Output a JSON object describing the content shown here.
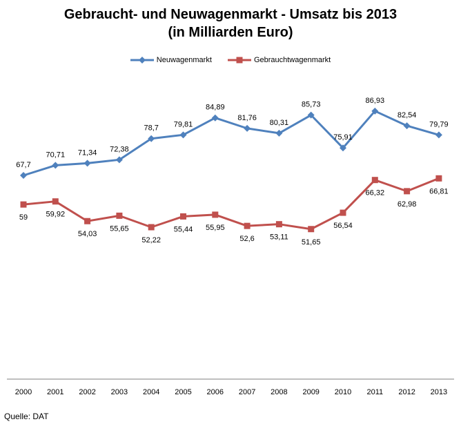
{
  "header": {
    "title_line1": "Gebraucht- und Neuwagenmarkt - Umsatz bis 2013",
    "title_line2": "(in Milliarden Euro)"
  },
  "footer": {
    "source": "Quelle: DAT"
  },
  "chart_data": {
    "type": "line",
    "title": "Gebraucht- und Neuwagenmarkt - Umsatz bis 2013 (in Milliarden Euro)",
    "categories": [
      "2000",
      "2001",
      "2002",
      "2003",
      "2004",
      "2005",
      "2006",
      "2007",
      "2008",
      "2009",
      "2010",
      "2011",
      "2012",
      "2013"
    ],
    "series": [
      {
        "name": "Neuwagenmarkt",
        "color": "#4f81bd",
        "marker": "diamond",
        "labels": [
          "67,7",
          "70,71",
          "71,34",
          "72,38",
          "78,7",
          "79,81",
          "84,89",
          "81,76",
          "80,31",
          "85,73",
          "75,91",
          "86,93",
          "82,54",
          "79,79"
        ],
        "values": [
          67.7,
          70.71,
          71.34,
          72.38,
          78.7,
          79.81,
          84.89,
          81.76,
          80.31,
          85.73,
          75.91,
          86.93,
          82.54,
          79.79
        ]
      },
      {
        "name": "Gebrauchtwagenmarkt",
        "color": "#c0504d",
        "marker": "square",
        "labels": [
          "59",
          "59,92",
          "54,03",
          "55,65",
          "52,22",
          "55,44",
          "55,95",
          "52,6",
          "53,11",
          "51,65",
          "56,54",
          "66,32",
          "62,98",
          "66,81"
        ],
        "values": [
          59,
          59.92,
          54.03,
          55.65,
          52.22,
          55.44,
          55.95,
          52.6,
          53.11,
          51.65,
          56.54,
          66.32,
          62.98,
          66.81
        ]
      }
    ],
    "legend_position": "top",
    "grid": false,
    "xlabel": "",
    "ylabel": ""
  }
}
